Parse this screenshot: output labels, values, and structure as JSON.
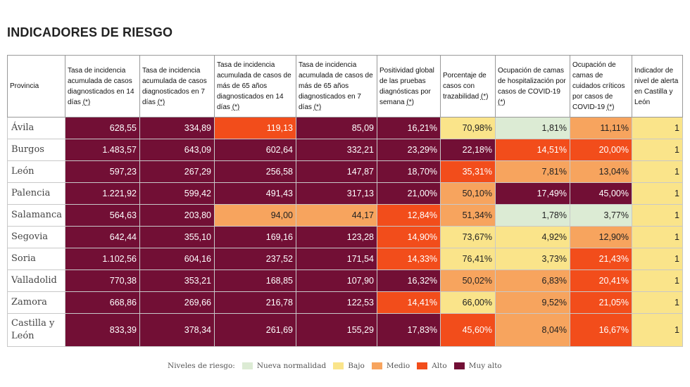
{
  "title": "INDICADORES DE RIESGO",
  "colors": {
    "nueva": "#dcebd4",
    "bajo": "#fae48a",
    "medio": "#f7a45e",
    "alto": "#f24d1b",
    "muy_alto": "#720f35"
  },
  "headers": [
    "Provincia",
    "Tasa de incidencia acumulada de casos diagnosticados en 14 días (*)",
    "Tasa de incidencia acumulada de casos diagnosticados en 7 días (*)",
    "Tasa de incidencia acumulada de casos de más de 65 años diagnosticados en 14 días (*)",
    "Tasa de incidencia acumulada de casos de más de 65 años diagnosticados en 7 días (*)",
    "Positividad global de las pruebas diagnósticas por semana (*)",
    "Porcentaje de casos con trazabilidad (*)",
    "Ocupación de camas de hospitalización por casos de COVID-19 (*)",
    "Ocupación de camas de cuidados críticos por casos de COVID-19 (*)",
    "Indicador de nivel de alerta en Castilla y León"
  ],
  "rows": [
    {
      "name": "Ávila",
      "cells": [
        [
          "628,55",
          "muy_alto"
        ],
        [
          "334,89",
          "muy_alto"
        ],
        [
          "119,13",
          "alto"
        ],
        [
          "85,09",
          "muy_alto"
        ],
        [
          "16,21%",
          "muy_alto"
        ],
        [
          "70,98%",
          "bajo"
        ],
        [
          "1,81%",
          "nueva"
        ],
        [
          "11,11%",
          "medio"
        ],
        [
          "1",
          "bajo"
        ]
      ]
    },
    {
      "name": "Burgos",
      "cells": [
        [
          "1.483,57",
          "muy_alto"
        ],
        [
          "643,09",
          "muy_alto"
        ],
        [
          "602,64",
          "muy_alto"
        ],
        [
          "332,21",
          "muy_alto"
        ],
        [
          "23,29%",
          "muy_alto"
        ],
        [
          "22,18%",
          "muy_alto"
        ],
        [
          "14,51%",
          "alto"
        ],
        [
          "20,00%",
          "alto"
        ],
        [
          "1",
          "bajo"
        ]
      ]
    },
    {
      "name": "León",
      "cells": [
        [
          "597,23",
          "muy_alto"
        ],
        [
          "267,29",
          "muy_alto"
        ],
        [
          "256,58",
          "muy_alto"
        ],
        [
          "147,87",
          "muy_alto"
        ],
        [
          "18,70%",
          "muy_alto"
        ],
        [
          "35,31%",
          "alto"
        ],
        [
          "7,81%",
          "medio"
        ],
        [
          "13,04%",
          "medio"
        ],
        [
          "1",
          "bajo"
        ]
      ]
    },
    {
      "name": "Palencia",
      "cells": [
        [
          "1.221,92",
          "muy_alto"
        ],
        [
          "599,42",
          "muy_alto"
        ],
        [
          "491,43",
          "muy_alto"
        ],
        [
          "317,13",
          "muy_alto"
        ],
        [
          "21,00%",
          "muy_alto"
        ],
        [
          "50,10%",
          "medio"
        ],
        [
          "17,49%",
          "muy_alto"
        ],
        [
          "45,00%",
          "muy_alto"
        ],
        [
          "1",
          "bajo"
        ]
      ]
    },
    {
      "name": "Salamanca",
      "cells": [
        [
          "564,63",
          "muy_alto"
        ],
        [
          "203,80",
          "muy_alto"
        ],
        [
          "94,00",
          "medio"
        ],
        [
          "44,17",
          "medio"
        ],
        [
          "12,84%",
          "alto"
        ],
        [
          "51,34%",
          "medio"
        ],
        [
          "1,78%",
          "nueva"
        ],
        [
          "3,77%",
          "nueva"
        ],
        [
          "1",
          "bajo"
        ]
      ]
    },
    {
      "name": "Segovia",
      "cells": [
        [
          "642,44",
          "muy_alto"
        ],
        [
          "355,10",
          "muy_alto"
        ],
        [
          "169,16",
          "muy_alto"
        ],
        [
          "123,28",
          "muy_alto"
        ],
        [
          "14,90%",
          "alto"
        ],
        [
          "73,67%",
          "bajo"
        ],
        [
          "4,92%",
          "bajo"
        ],
        [
          "12,90%",
          "medio"
        ],
        [
          "1",
          "bajo"
        ]
      ]
    },
    {
      "name": "Soria",
      "cells": [
        [
          "1.102,56",
          "muy_alto"
        ],
        [
          "604,16",
          "muy_alto"
        ],
        [
          "237,52",
          "muy_alto"
        ],
        [
          "171,54",
          "muy_alto"
        ],
        [
          "14,33%",
          "alto"
        ],
        [
          "76,41%",
          "bajo"
        ],
        [
          "3,73%",
          "bajo"
        ],
        [
          "21,43%",
          "alto"
        ],
        [
          "1",
          "bajo"
        ]
      ]
    },
    {
      "name": "Valladolid",
      "cells": [
        [
          "770,38",
          "muy_alto"
        ],
        [
          "353,21",
          "muy_alto"
        ],
        [
          "168,85",
          "muy_alto"
        ],
        [
          "107,90",
          "muy_alto"
        ],
        [
          "16,32%",
          "muy_alto"
        ],
        [
          "50,02%",
          "medio"
        ],
        [
          "6,83%",
          "medio"
        ],
        [
          "20,41%",
          "alto"
        ],
        [
          "1",
          "bajo"
        ]
      ]
    },
    {
      "name": "Zamora",
      "cells": [
        [
          "668,86",
          "muy_alto"
        ],
        [
          "269,66",
          "muy_alto"
        ],
        [
          "216,78",
          "muy_alto"
        ],
        [
          "122,53",
          "muy_alto"
        ],
        [
          "14,41%",
          "alto"
        ],
        [
          "66,00%",
          "bajo"
        ],
        [
          "9,52%",
          "medio"
        ],
        [
          "21,05%",
          "alto"
        ],
        [
          "1",
          "bajo"
        ]
      ]
    },
    {
      "name": "Castilla y León",
      "cells": [
        [
          "833,39",
          "muy_alto"
        ],
        [
          "378,34",
          "muy_alto"
        ],
        [
          "261,69",
          "muy_alto"
        ],
        [
          "155,29",
          "muy_alto"
        ],
        [
          "17,83%",
          "muy_alto"
        ],
        [
          "45,60%",
          "alto"
        ],
        [
          "8,04%",
          "medio"
        ],
        [
          "16,67%",
          "alto"
        ],
        [
          "1",
          "bajo"
        ]
      ]
    }
  ],
  "legend": {
    "label": "Niveles de riesgo:",
    "items": [
      {
        "label": "Nueva normalidad",
        "level": "nueva"
      },
      {
        "label": "Bajo",
        "level": "bajo"
      },
      {
        "label": "Medio",
        "level": "medio"
      },
      {
        "label": "Alto",
        "level": "alto"
      },
      {
        "label": "Muy alto",
        "level": "muy_alto"
      }
    ]
  }
}
